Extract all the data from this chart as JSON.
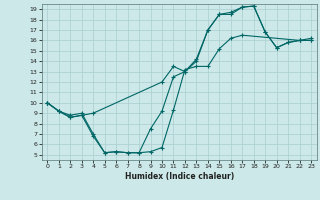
{
  "title": "",
  "xlabel": "Humidex (Indice chaleur)",
  "ylabel": "",
  "xlim": [
    -0.5,
    23.5
  ],
  "ylim": [
    4.5,
    19.5
  ],
  "xticks": [
    0,
    1,
    2,
    3,
    4,
    5,
    6,
    7,
    8,
    9,
    10,
    11,
    12,
    13,
    14,
    15,
    16,
    17,
    18,
    19,
    20,
    21,
    22,
    23
  ],
  "yticks": [
    5,
    6,
    7,
    8,
    9,
    10,
    11,
    12,
    13,
    14,
    15,
    16,
    17,
    18,
    19
  ],
  "bg_color": "#cce8e8",
  "line_color": "#006666",
  "grid_color": "#aacece",
  "curve1_x": [
    0,
    1,
    2,
    3,
    4,
    5,
    6,
    7,
    8,
    9,
    10,
    11,
    12,
    13,
    14,
    15,
    16,
    17,
    22,
    23
  ],
  "curve1_y": [
    10,
    9.2,
    8.8,
    9.0,
    7.0,
    5.2,
    5.3,
    5.2,
    5.2,
    5.3,
    5.7,
    9.3,
    13.2,
    13.5,
    13.5,
    15.2,
    16.2,
    16.5,
    16.0,
    16.2
  ],
  "curve2_x": [
    0,
    1,
    2,
    3,
    4,
    10,
    11,
    12,
    13,
    14,
    15,
    16,
    17,
    18,
    19,
    20,
    21,
    22,
    23
  ],
  "curve2_y": [
    10,
    9.2,
    8.6,
    8.8,
    9.0,
    12.0,
    13.5,
    13.0,
    14.0,
    17.0,
    18.5,
    18.5,
    19.2,
    19.3,
    16.8,
    15.3,
    15.8,
    16.0,
    16.0
  ],
  "curve3_x": [
    0,
    1,
    2,
    3,
    4,
    5,
    6,
    7,
    8,
    9,
    10,
    11,
    12,
    13,
    14,
    15,
    16,
    17,
    18,
    19,
    20,
    21,
    22,
    23
  ],
  "curve3_y": [
    10,
    9.2,
    8.6,
    8.8,
    6.8,
    5.2,
    5.3,
    5.2,
    5.2,
    7.5,
    9.2,
    12.5,
    13.0,
    14.2,
    17.0,
    18.5,
    18.7,
    19.2,
    19.3,
    16.8,
    15.3,
    15.8,
    16.0,
    16.0
  ],
  "xlabel_fontsize": 5.5,
  "tick_fontsize": 4.5
}
